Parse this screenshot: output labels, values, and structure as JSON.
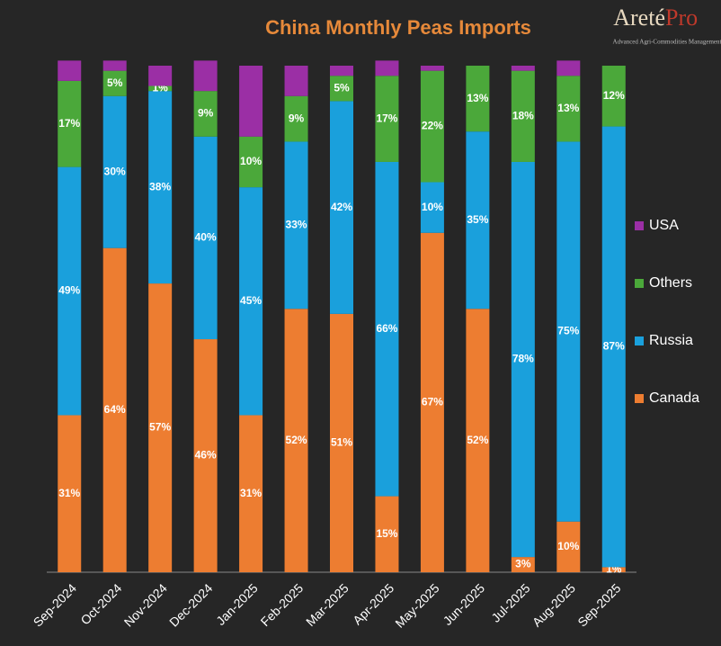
{
  "chart_data": {
    "type": "stacked_bar",
    "title": "China Monthly Peas Imports",
    "logo": {
      "name_left": "Areté",
      "name_right": "Pro",
      "tagline": "Advanced Agri-Commodities Management"
    },
    "categories": [
      "Sep-2024",
      "Oct-2024",
      "Nov-2024",
      "Dec-2024",
      "Jan-2025",
      "Feb-2025",
      "Mar-2025",
      "Apr-2025",
      "May-2025",
      "Jun-2025",
      "Jul-2025",
      "Aug-2025",
      "Sep-2025"
    ],
    "ylim": [
      0,
      100
    ],
    "series": [
      {
        "name": "Canada",
        "color": "#ed7d31",
        "values": [
          31,
          64,
          57,
          46,
          31,
          52,
          51,
          15,
          67,
          52,
          3,
          10,
          1
        ],
        "value_labels": [
          "31%",
          "64%",
          "57%",
          "46%",
          "31%",
          "52%",
          "51%",
          "15%",
          "67%",
          "52%",
          "3%",
          "10%",
          "1%"
        ]
      },
      {
        "name": "Russia",
        "color": "#1aa0dc",
        "values": [
          49,
          30,
          38,
          40,
          45,
          33,
          42,
          66,
          10,
          35,
          78,
          75,
          87
        ],
        "value_labels": [
          "49%",
          "30%",
          "38%",
          "40%",
          "45%",
          "33%",
          "42%",
          "66%",
          "10%",
          "35%",
          "78%",
          "75%",
          "87%"
        ]
      },
      {
        "name": "Others",
        "color": "#4ba83a",
        "values": [
          17,
          5,
          1,
          9,
          10,
          9,
          5,
          17,
          22,
          13,
          18,
          13,
          12
        ],
        "value_labels": [
          "17%",
          "5%",
          "1%",
          "9%",
          "10%",
          "9%",
          "5%",
          "17%",
          "22%",
          "13%",
          "18%",
          "13%",
          "12%"
        ]
      },
      {
        "name": "USA",
        "color": "#9b2fa5",
        "values": [
          4,
          2,
          4,
          6,
          14,
          6,
          2,
          3,
          1,
          0,
          1,
          3,
          0
        ]
      }
    ]
  }
}
